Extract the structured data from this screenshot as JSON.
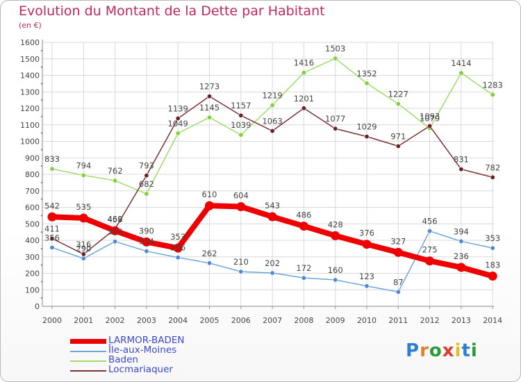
{
  "header": {
    "title": "Evolution du Montant de la Dette par Habitant",
    "subtitle": "(en €)"
  },
  "brand": {
    "letters": [
      "P",
      "r",
      "o",
      "x",
      "i",
      "t",
      "i"
    ],
    "colors": [
      "#2d7fd0",
      "#e0822a",
      "#2a9a3b",
      "#e03a2a",
      "#e0c020",
      "#2d7fd0",
      "#2a9a3b"
    ]
  },
  "chart_data": {
    "type": "line",
    "categories": [
      "2000",
      "2001",
      "2002",
      "2003",
      "2004",
      "2005",
      "2006",
      "2007",
      "2008",
      "2009",
      "2010",
      "2011",
      "2012",
      "2013",
      "2014"
    ],
    "ylim": [
      0,
      1600
    ],
    "yticks": [
      0,
      100,
      200,
      300,
      400,
      500,
      600,
      700,
      800,
      900,
      1000,
      1100,
      1200,
      1300,
      1400,
      1500,
      1600
    ],
    "grid": true,
    "legend_position": "bottom-left",
    "series": [
      {
        "name": "LARMOR-BADEN",
        "color": "#ee0000",
        "marker": "#ee0000",
        "bold": true,
        "values": [
          542,
          535,
          458,
          390,
          353,
          610,
          604,
          543,
          486,
          428,
          376,
          327,
          275,
          236,
          183
        ]
      },
      {
        "name": "Île-aux-Moines",
        "color": "#6aa6d8",
        "marker": "#4f86d6",
        "bold": false,
        "values": [
          356,
          290,
          393,
          334,
          296,
          262,
          210,
          202,
          172,
          160,
          123,
          87,
          456,
          394,
          353
        ]
      },
      {
        "name": "Baden",
        "color": "#9fdb6a",
        "marker": "#7ed33a",
        "bold": false,
        "values": [
          833,
          794,
          762,
          682,
          1049,
          1145,
          1039,
          1219,
          1416,
          1503,
          1352,
          1227,
          1079,
          1414,
          1283
        ]
      },
      {
        "name": "Locmariaquer",
        "color": "#7a3236",
        "marker": "#6b1f22",
        "bold": false,
        "values": [
          411,
          316,
          469,
          793,
          1139,
          1273,
          1157,
          1063,
          1201,
          1077,
          1029,
          971,
          1093,
          831,
          782
        ]
      }
    ]
  }
}
